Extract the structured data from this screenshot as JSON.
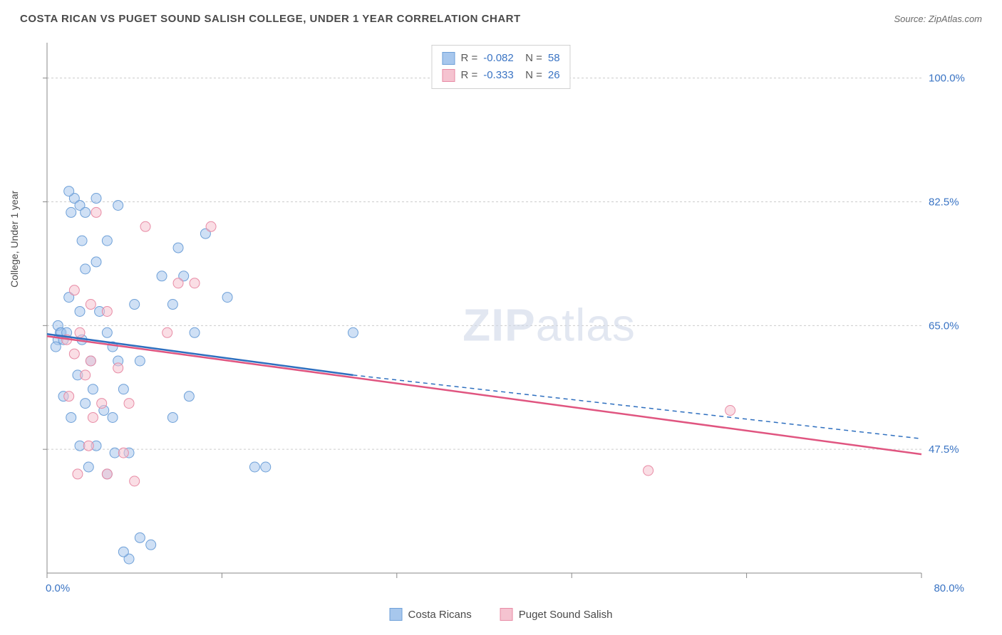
{
  "title": "COSTA RICAN VS PUGET SOUND SALISH COLLEGE, UNDER 1 YEAR CORRELATION CHART",
  "source": "Source: ZipAtlas.com",
  "watermark_bold": "ZIP",
  "watermark_light": "atlas",
  "chart": {
    "type": "scatter",
    "ylabel": "College, Under 1 year",
    "xlim": [
      0,
      80
    ],
    "ylim": [
      30,
      105
    ],
    "x_ticks": [
      0,
      16,
      32,
      48,
      64,
      80
    ],
    "x_tick_labels": [
      "0.0%",
      "",
      "",
      "",
      "",
      "80.0%"
    ],
    "y_gridlines": [
      47.5,
      65.0,
      82.5,
      100.0
    ],
    "y_tick_labels": [
      "47.5%",
      "65.0%",
      "82.5%",
      "100.0%"
    ],
    "background_color": "#ffffff",
    "grid_color": "#cccccc",
    "axis_color": "#888888",
    "label_color": "#3a74c4",
    "marker_radius": 7,
    "marker_opacity": 0.55,
    "line_width": 2.5,
    "series": [
      {
        "name": "Costa Ricans",
        "color_fill": "#a7c7ed",
        "color_stroke": "#6ea0d8",
        "line_color": "#2e6fbf",
        "R": "-0.082",
        "N": "58",
        "trend": {
          "x1": 0,
          "y1": 63.8,
          "x2": 28,
          "y2": 58.0,
          "dash_x2": 80,
          "dash_y2": 49.0
        },
        "points": [
          [
            1.0,
            63
          ],
          [
            1.2,
            64
          ],
          [
            1.0,
            65
          ],
          [
            1.5,
            63
          ],
          [
            0.8,
            62
          ],
          [
            1.3,
            64
          ],
          [
            1.8,
            64
          ],
          [
            2.5,
            83
          ],
          [
            4.5,
            83
          ],
          [
            3.0,
            82
          ],
          [
            6.5,
            82
          ],
          [
            2.2,
            81
          ],
          [
            5.5,
            77
          ],
          [
            3.2,
            77
          ],
          [
            4.5,
            74
          ],
          [
            3.5,
            73
          ],
          [
            10.5,
            72
          ],
          [
            12.5,
            72
          ],
          [
            8.0,
            68
          ],
          [
            11.5,
            68
          ],
          [
            2.0,
            69
          ],
          [
            3.0,
            67
          ],
          [
            4.8,
            67
          ],
          [
            5.5,
            64
          ],
          [
            3.2,
            63
          ],
          [
            6.0,
            62
          ],
          [
            4.0,
            60
          ],
          [
            6.5,
            60
          ],
          [
            8.5,
            60
          ],
          [
            2.8,
            58
          ],
          [
            4.2,
            56
          ],
          [
            7.0,
            56
          ],
          [
            1.5,
            55
          ],
          [
            3.5,
            54
          ],
          [
            5.2,
            53
          ],
          [
            2.2,
            52
          ],
          [
            6.0,
            52
          ],
          [
            3.0,
            48
          ],
          [
            4.5,
            48
          ],
          [
            6.2,
            47
          ],
          [
            7.5,
            47
          ],
          [
            3.8,
            45
          ],
          [
            5.5,
            44
          ],
          [
            2.0,
            84
          ],
          [
            3.5,
            81
          ],
          [
            13.5,
            64
          ],
          [
            16.5,
            69
          ],
          [
            13.0,
            55
          ],
          [
            11.5,
            52
          ],
          [
            14.5,
            78
          ],
          [
            12.0,
            76
          ],
          [
            28.0,
            64
          ],
          [
            20.0,
            45
          ],
          [
            19.0,
            45
          ],
          [
            8.5,
            35
          ],
          [
            7.5,
            32
          ],
          [
            7.0,
            33
          ],
          [
            9.5,
            34
          ]
        ]
      },
      {
        "name": "Puget Sound Salish",
        "color_fill": "#f5c3d0",
        "color_stroke": "#e88ba5",
        "line_color": "#e05580",
        "R": "-0.333",
        "N": "26",
        "trend": {
          "x1": 0,
          "y1": 63.5,
          "x2": 80,
          "y2": 46.8
        },
        "points": [
          [
            4.5,
            81
          ],
          [
            9.0,
            79
          ],
          [
            15.0,
            79
          ],
          [
            2.5,
            70
          ],
          [
            5.5,
            67
          ],
          [
            3.0,
            64
          ],
          [
            1.8,
            63
          ],
          [
            12.0,
            71
          ],
          [
            13.5,
            71
          ],
          [
            2.5,
            61
          ],
          [
            4.0,
            60
          ],
          [
            6.5,
            59
          ],
          [
            3.5,
            58
          ],
          [
            2.0,
            55
          ],
          [
            5.0,
            54
          ],
          [
            7.5,
            54
          ],
          [
            4.2,
            52
          ],
          [
            3.8,
            48
          ],
          [
            7.0,
            47
          ],
          [
            2.8,
            44
          ],
          [
            5.5,
            44
          ],
          [
            8.0,
            43
          ],
          [
            4.0,
            68
          ],
          [
            11.0,
            64
          ],
          [
            62.5,
            53
          ],
          [
            55.0,
            44.5
          ]
        ]
      }
    ]
  },
  "legend_bottom": [
    {
      "label": "Costa Ricans",
      "fill": "#a7c7ed",
      "stroke": "#6ea0d8"
    },
    {
      "label": "Puget Sound Salish",
      "fill": "#f5c3d0",
      "stroke": "#e88ba5"
    }
  ]
}
